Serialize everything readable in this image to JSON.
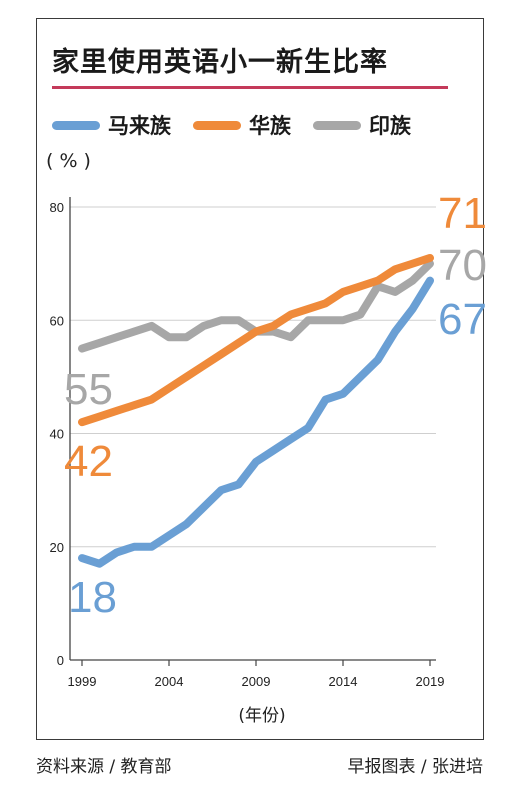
{
  "title": "家里使用英语小一新生比率",
  "unit_label": "( % )",
  "footer": {
    "source": "资料来源 / 教育部",
    "credit": "早报图表 / 张进培"
  },
  "colors": {
    "malay": "#6a9fd4",
    "chinese": "#ef8a3a",
    "indian": "#a7a7a7",
    "title_rule": "#c43a5a"
  },
  "chart_data": {
    "type": "line",
    "title": "家里使用英语小一新生比率",
    "xlabel": "(年份)",
    "ylabel": "( % )",
    "ylim": [
      0,
      80
    ],
    "xlim": [
      1999,
      2019
    ],
    "yticks": [
      0,
      20,
      40,
      60,
      80
    ],
    "xticks": [
      1999,
      2004,
      2009,
      2014,
      2019
    ],
    "grid": true,
    "legend_position": "top",
    "x": [
      1999,
      2000,
      2001,
      2002,
      2003,
      2004,
      2005,
      2006,
      2007,
      2008,
      2009,
      2010,
      2011,
      2012,
      2013,
      2014,
      2015,
      2016,
      2017,
      2018,
      2019
    ],
    "series": [
      {
        "name": "马来族",
        "color": "#6a9fd4",
        "values": [
          18,
          17,
          19,
          20,
          20,
          22,
          24,
          27,
          30,
          31,
          35,
          37,
          39,
          41,
          46,
          47,
          50,
          53,
          58,
          62,
          67
        ],
        "start_label": "18",
        "end_label": "67"
      },
      {
        "name": "华族",
        "color": "#ef8a3a",
        "values": [
          42,
          43,
          44,
          45,
          46,
          48,
          50,
          52,
          54,
          56,
          58,
          59,
          61,
          62,
          63,
          65,
          66,
          67,
          69,
          70,
          71
        ],
        "start_label": "42",
        "end_label": "71"
      },
      {
        "name": "印族",
        "color": "#a7a7a7",
        "values": [
          55,
          56,
          57,
          58,
          59,
          57,
          57,
          59,
          60,
          60,
          58,
          58,
          57,
          60,
          60,
          60,
          61,
          66,
          65,
          67,
          70
        ],
        "start_label": "55",
        "end_label": "70"
      }
    ]
  }
}
